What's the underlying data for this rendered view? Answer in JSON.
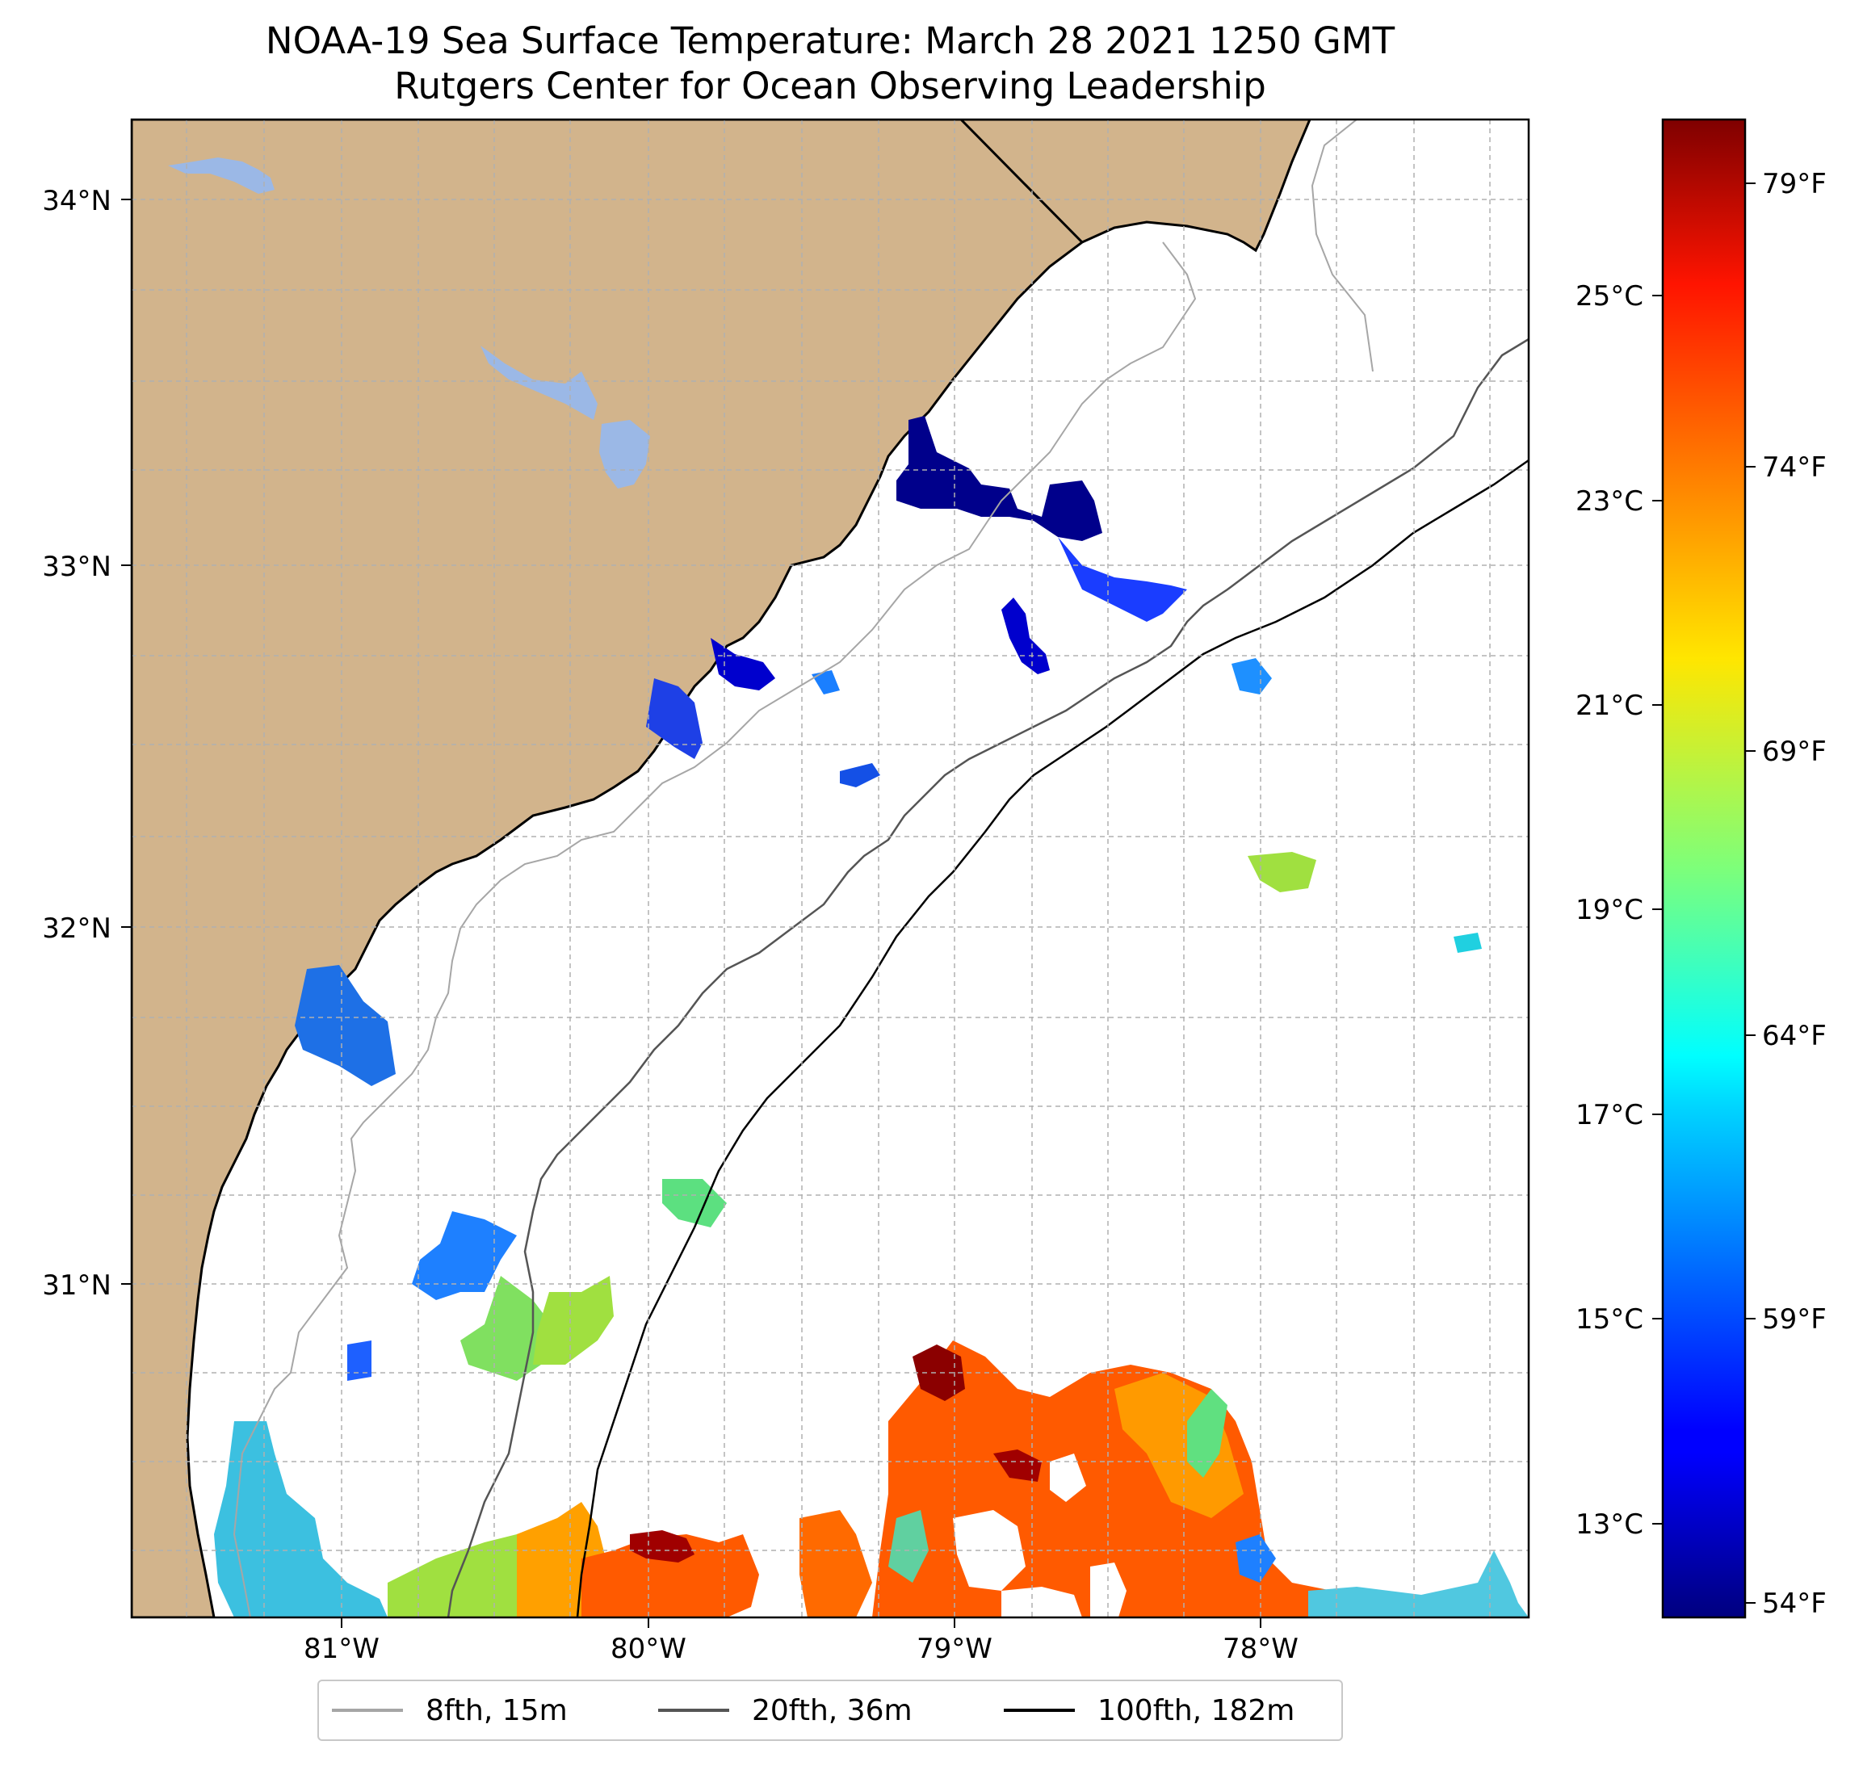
{
  "title": {
    "line1": "NOAA-19 Sea Surface Temperature: March 28 2021 1250 GMT",
    "line2": "Rutgers Center for Ocean Observing Leadership"
  },
  "map": {
    "lat_labels": [
      "34°N",
      "33°N",
      "32°N",
      "31°N"
    ],
    "lon_labels": [
      "81°W",
      "80°W",
      "79°W",
      "78°W"
    ],
    "land_color": "#d2b48c",
    "water_color": "#ffffff",
    "lake_color": "#9bb8e6"
  },
  "colorbar": {
    "celsius_labels": [
      "25°C",
      "23°C",
      "21°C",
      "19°C",
      "17°C",
      "15°C",
      "13°C"
    ],
    "fahrenheit_labels": [
      "79°F",
      "74°F",
      "69°F",
      "64°F",
      "59°F",
      "54°F"
    ],
    "colormap": "jet"
  },
  "legend": {
    "items": [
      {
        "label": "8fth, 15m",
        "color": "#a6a6a6"
      },
      {
        "label": "20fth, 36m",
        "color": "#555555"
      },
      {
        "label": "100fth, 182m",
        "color": "#000000"
      }
    ]
  }
}
